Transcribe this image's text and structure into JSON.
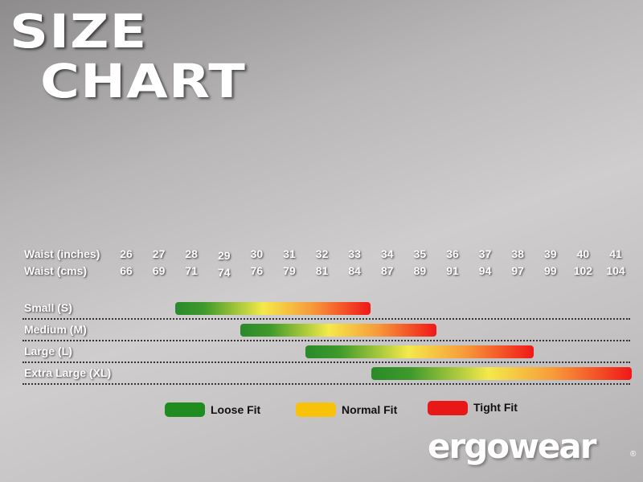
{
  "title_line1": "SIZE",
  "title_line2": "CHART",
  "row_headers": {
    "inches": "Waist (inches)",
    "cms": "Waist (cms)"
  },
  "chart_data": {
    "type": "bar",
    "orientation": "horizontal-range",
    "inches": [
      "26",
      "27",
      "28",
      "29",
      "30",
      "31",
      "32",
      "33",
      "34",
      "35",
      "36",
      "37",
      "38",
      "39",
      "40",
      "41"
    ],
    "cms": [
      "66",
      "69",
      "71",
      "74",
      "76",
      "79",
      "81",
      "84",
      "87",
      "89",
      "91",
      "94",
      "97",
      "99",
      "102",
      "104"
    ],
    "sizes": [
      {
        "label": "Small (S)",
        "from_inches": 28,
        "to_inches": 33
      },
      {
        "label": "Medium (M)",
        "from_inches": 30,
        "to_inches": 35
      },
      {
        "label": "Large (L)",
        "from_inches": 32,
        "to_inches": 38
      },
      {
        "label": "Extra Large (XL)",
        "from_inches": 34,
        "to_inches": 41
      }
    ],
    "legend": [
      {
        "label": "Loose Fit",
        "color": "#1e8c1e"
      },
      {
        "label": "Normal Fit",
        "color": "#f8c20a"
      },
      {
        "label": "Tight Fit",
        "color": "#e81818"
      }
    ],
    "legend_placement": "bottom"
  },
  "logo": "ergowear"
}
